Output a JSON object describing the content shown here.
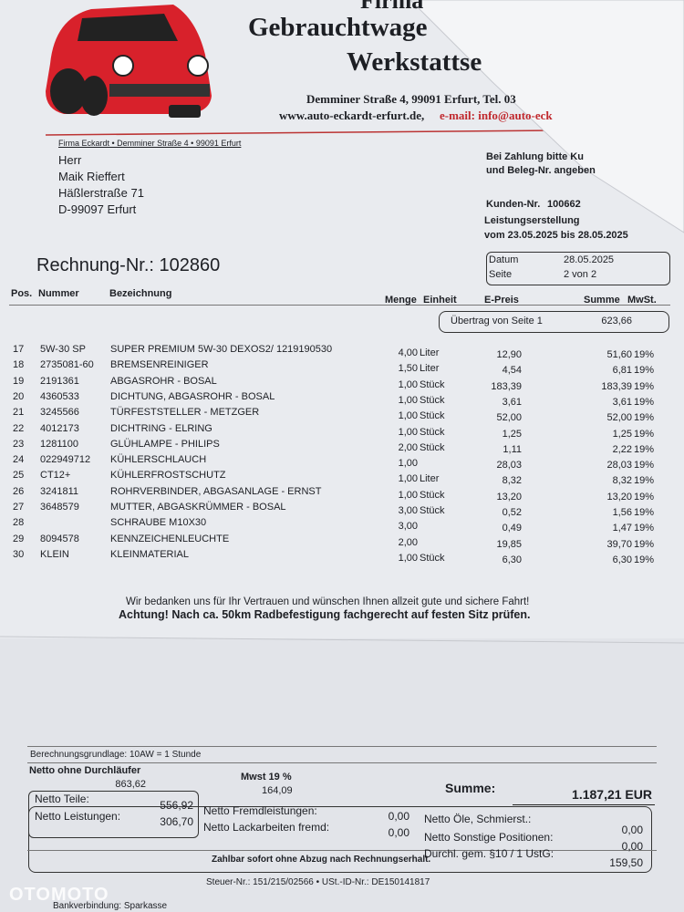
{
  "header": {
    "company_top": "Firma",
    "company_line1": "Gebrauchtwage",
    "company_line2": "Werkstattse",
    "address": "Demminer Straße 4,  99091 Erfurt,  Tel. 03",
    "web": "www.auto-eckardt-erfurt.de,",
    "email": "e-mail: info@auto-eck"
  },
  "sender_line": "Firma Eckardt • Demminer Straße 4 • 99091 Erfurt",
  "recipient": [
    "Herr",
    "Maik Rieffert",
    "Häßlerstraße 71",
    "D-99097 Erfurt"
  ],
  "payment_note": [
    "Bei Zahlung bitte Ku",
    "und Beleg-Nr. angeben"
  ],
  "customer": {
    "label": "Kunden-Nr.",
    "number": "100662"
  },
  "service_period": [
    "Leistungserstellung",
    "vom 23.05.2025 bis 28.05.2025"
  ],
  "invoice_title": "Rechnung-Nr.: 102860",
  "info_box": {
    "date_label": "Datum",
    "date": "28.05.2025",
    "page_label": "Seite",
    "page": "2 von 2"
  },
  "table": {
    "headers": [
      "Pos.",
      "Nummer",
      "Bezeichnung",
      "Menge",
      "Einheit",
      "E-Preis",
      "Summe",
      "MwSt."
    ],
    "carry_over": {
      "label": "Übertrag von Seite 1",
      "value": "623,66"
    },
    "rows": [
      [
        "17",
        "5W-30 SP",
        "SUPER PREMIUM 5W-30 DEXOS2/ 1219190530",
        "4,00",
        "Liter",
        "12,90",
        "51,60",
        "19%"
      ],
      [
        "18",
        "2735081-60",
        "BREMSENREINIGER",
        "1,50",
        "Liter",
        "4,54",
        "6,81",
        "19%"
      ],
      [
        "19",
        "2191361",
        "ABGASROHR - BOSAL",
        "1,00",
        "Stück",
        "183,39",
        "183,39",
        "19%"
      ],
      [
        "20",
        "4360533",
        "DICHTUNG, ABGASROHR - BOSAL",
        "1,00",
        "Stück",
        "3,61",
        "3,61",
        "19%"
      ],
      [
        "21",
        "3245566",
        "TÜRFESTSTELLER - METZGER",
        "1,00",
        "Stück",
        "52,00",
        "52,00",
        "19%"
      ],
      [
        "22",
        "4012173",
        "DICHTRING - ELRING",
        "1,00",
        "Stück",
        "1,25",
        "1,25",
        "19%"
      ],
      [
        "23",
        "1281100",
        "GLÜHLAMPE - PHILIPS",
        "2,00",
        "Stück",
        "1,11",
        "2,22",
        "19%"
      ],
      [
        "24",
        "022949712",
        "KÜHLERSCHLAUCH",
        "1,00",
        null,
        "28,03",
        "28,03",
        "19%"
      ],
      [
        "25",
        "CT12+",
        "KÜHLERFROSTSCHUTZ",
        "1,00",
        "Liter",
        "8,32",
        "8,32",
        "19%"
      ],
      [
        "26",
        "3241811",
        "ROHRVERBINDER, ABGASANLAGE - ERNST",
        "1,00",
        "Stück",
        "13,20",
        "13,20",
        "19%"
      ],
      [
        "27",
        "3648579",
        "MUTTER, ABGASKRÜMMER - BOSAL",
        "3,00",
        "Stück",
        "0,52",
        "1,56",
        "19%"
      ],
      [
        "28",
        null,
        "SCHRAUBE M10X30",
        "3,00",
        null,
        "0,49",
        "1,47",
        "19%"
      ],
      [
        "29",
        "8094578",
        "KENNZEICHENLEUCHTE",
        "2,00",
        null,
        "19,85",
        "39,70",
        "19%"
      ],
      [
        "30",
        "KLEIN",
        "KLEINMATERIAL",
        "1,00",
        "Stück",
        "6,30",
        "6,30",
        "19%"
      ]
    ]
  },
  "thanks": "Wir bedanken uns für Ihr Vertrauen und wünschen Ihnen allzeit gute und sichere Fahrt!",
  "warning": "Achtung! Nach ca. 50km Radbefestigung fachgerecht auf festen Sitz prüfen.",
  "totals": {
    "basis": "Berechnungsgrundlage: 10AW = 1 Stunde",
    "net_label": "Netto ohne Durchläufer",
    "net": "863,62",
    "vat_label": "Mwst 19 %",
    "vat": "164,09",
    "sum_label": "Summe:",
    "sum": "1.187,21 EUR",
    "parts_label": "Netto Teile:",
    "parts": "556,92",
    "services_label": "Netto Leistungen:",
    "services": "306,70",
    "external_label": "Netto Fremdleistungen:",
    "external": "0,00",
    "paint_label": "Netto Lackarbeiten fremd:",
    "paint": "0,00",
    "oils_label": "Netto Öle, Schmierst.:",
    "oils": "0,00",
    "other_label": "Netto Sonstige Positionen:",
    "other": "0,00",
    "transit_label": "Durchl. gem. §10 / 1 UstG:",
    "transit": "159,50"
  },
  "footer": {
    "payment": "Zahlbar sofort ohne Abzug nach Rechnungserhalt.",
    "tax": "Steuer-Nr.: 151/215/02566  •  USt.-ID-Nr.: DE150141817",
    "bank": "Bankverbindung: Sparkasse"
  },
  "watermark": "OTOMOTO"
}
